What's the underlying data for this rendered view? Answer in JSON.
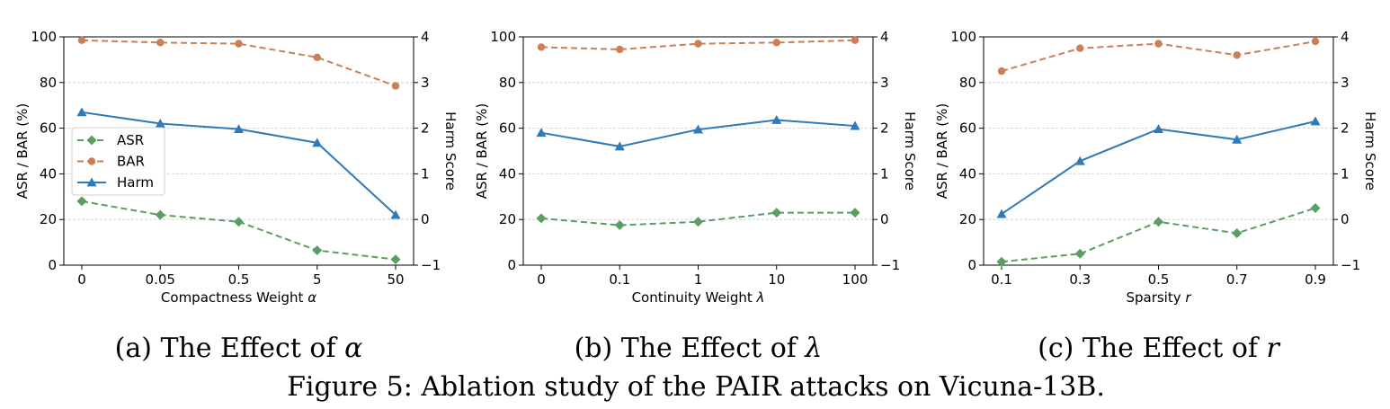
{
  "figure": {
    "caption": "Figure 5: Ablation study of the PAIR attacks on Vicuna-13B."
  },
  "colors": {
    "asr": "#5b9e64",
    "bar": "#cc7f56",
    "harm": "#2f7ab8",
    "grid": "#cccccc",
    "axis": "#000000"
  },
  "chart_data": [
    {
      "type": "line",
      "subcaption_prefix": "(a) The Effect of ",
      "subcaption_symbol": "α",
      "xlabel_text": "Compactness Weight ",
      "xlabel_symbol": "α",
      "ylabel_left": "ASR / BAR (%)",
      "ylabel_right": "Harm Score",
      "categories": [
        "0",
        "0.05",
        "0.5",
        "5",
        "50"
      ],
      "ylim_left": [
        0,
        100
      ],
      "yticks_left": [
        "0",
        "20",
        "40",
        "60",
        "80",
        "100"
      ],
      "ylim_right": [
        -1,
        4
      ],
      "yticks_right": [
        "−1",
        "0",
        "1",
        "2",
        "3",
        "4"
      ],
      "grid": "horizontal dashed",
      "legend_position": "center-left",
      "series": [
        {
          "name": "ASR",
          "axis": "left",
          "marker": "diamond",
          "style": "dashed",
          "values": [
            28,
            22,
            19,
            6.5,
            2.5
          ]
        },
        {
          "name": "BAR",
          "axis": "left",
          "marker": "circle",
          "style": "dashed",
          "values": [
            98.5,
            97.5,
            97,
            91,
            78.5
          ]
        },
        {
          "name": "Harm",
          "axis": "right",
          "marker": "triangle",
          "style": "solid",
          "values": [
            2.35,
            2.1,
            1.98,
            1.68,
            0.1
          ]
        }
      ]
    },
    {
      "type": "line",
      "subcaption_prefix": "(b) The Effect of ",
      "subcaption_symbol": "λ",
      "xlabel_text": "Continuity Weight ",
      "xlabel_symbol": "λ",
      "ylabel_left": "ASR / BAR (%)",
      "ylabel_right": "Harm Score",
      "categories": [
        "0",
        "0.1",
        "1",
        "10",
        "100"
      ],
      "ylim_left": [
        0,
        100
      ],
      "yticks_left": [
        "0",
        "20",
        "40",
        "60",
        "80",
        "100"
      ],
      "ylim_right": [
        -1,
        4
      ],
      "yticks_right": [
        "−1",
        "0",
        "1",
        "2",
        "3",
        "4"
      ],
      "grid": "horizontal dashed",
      "series": [
        {
          "name": "ASR",
          "axis": "left",
          "marker": "diamond",
          "style": "dashed",
          "values": [
            20.5,
            17.5,
            19,
            23,
            23
          ]
        },
        {
          "name": "BAR",
          "axis": "left",
          "marker": "circle",
          "style": "dashed",
          "values": [
            95.5,
            94.5,
            97,
            97.5,
            98.5
          ]
        },
        {
          "name": "Harm",
          "axis": "right",
          "marker": "triangle",
          "style": "solid",
          "values": [
            1.9,
            1.6,
            1.97,
            2.18,
            2.05
          ]
        }
      ]
    },
    {
      "type": "line",
      "subcaption_prefix": "(c) The Effect of ",
      "subcaption_symbol": "r",
      "xlabel_text": "Sparsity ",
      "xlabel_symbol": "r",
      "ylabel_left": "ASR / BAR (%)",
      "ylabel_right": "Harm Score",
      "categories": [
        "0.1",
        "0.3",
        "0.5",
        "0.7",
        "0.9"
      ],
      "ylim_left": [
        0,
        100
      ],
      "yticks_left": [
        "0",
        "20",
        "40",
        "60",
        "80",
        "100"
      ],
      "ylim_right": [
        -1,
        4
      ],
      "yticks_right": [
        "−1",
        "0",
        "1",
        "2",
        "3",
        "4"
      ],
      "grid": "horizontal dashed",
      "series": [
        {
          "name": "ASR",
          "axis": "left",
          "marker": "diamond",
          "style": "dashed",
          "values": [
            1.5,
            5,
            19,
            14,
            25
          ]
        },
        {
          "name": "BAR",
          "axis": "left",
          "marker": "circle",
          "style": "dashed",
          "values": [
            85,
            95,
            97,
            92,
            98
          ]
        },
        {
          "name": "Harm",
          "axis": "right",
          "marker": "triangle",
          "style": "solid",
          "values": [
            0.12,
            1.28,
            1.98,
            1.75,
            2.15
          ]
        }
      ]
    }
  ]
}
